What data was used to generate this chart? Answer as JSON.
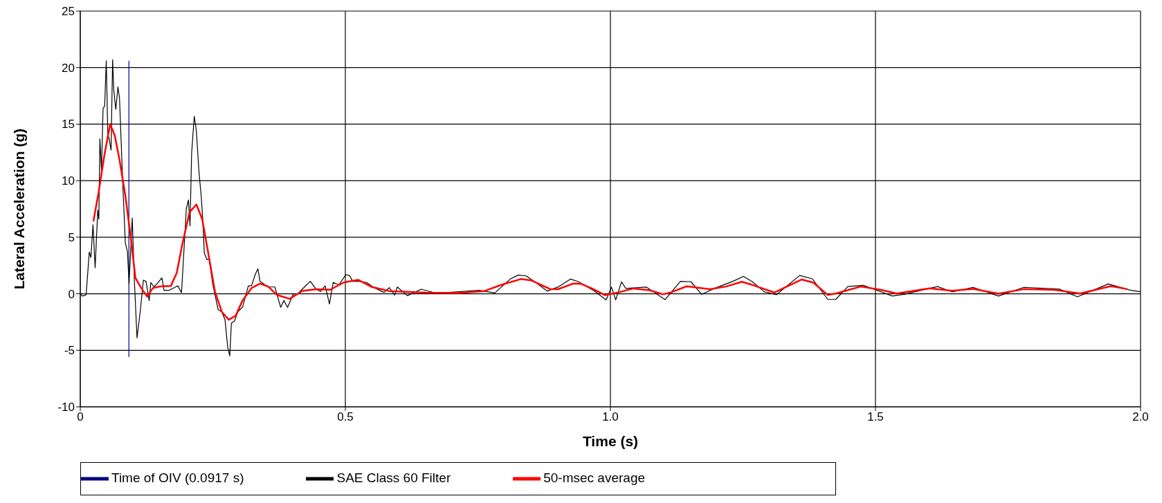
{
  "chart_data": {
    "type": "line",
    "xlabel": "Time (s)",
    "ylabel": "Lateral Acceleration (g)",
    "xlim": [
      0,
      2
    ],
    "xticks": [
      0,
      0.5,
      {
        "value": 1,
        "label": "1.0"
      },
      1.5,
      {
        "value": 2,
        "label": "2.0"
      }
    ],
    "ylim": [
      -10,
      25
    ],
    "yticks": [
      -10,
      -5,
      0,
      5,
      10,
      15,
      20,
      25
    ],
    "grid": true,
    "legend": "bottom",
    "series": [
      {
        "name": "Time of OIV (0.0917 s)",
        "color": "#000080",
        "x": [
          0.0917,
          0.0917
        ],
        "values": [
          -5.6,
          20.6
        ]
      },
      {
        "name": "SAE Class 60 Filter",
        "color": "#000000",
        "x": [
          0,
          0.004,
          0.011,
          0.017,
          0.02,
          0.024,
          0.028,
          0.033,
          0.035,
          0.037,
          0.04,
          0.043,
          0.046,
          0.049,
          0.052,
          0.054,
          0.058,
          0.061,
          0.063,
          0.067,
          0.071,
          0.074,
          0.08,
          0.085,
          0.089,
          0.092,
          0.098,
          0.102,
          0.107,
          0.113,
          0.119,
          0.124,
          0.13,
          0.133,
          0.139,
          0.145,
          0.154,
          0.158,
          0.167,
          0.184,
          0.191,
          0.2,
          0.204,
          0.207,
          0.21,
          0.215,
          0.219,
          0.224,
          0.228,
          0.231,
          0.234,
          0.239,
          0.243,
          0.25,
          0.26,
          0.267,
          0.273,
          0.278,
          0.282,
          0.285,
          0.291,
          0.297,
          0.306,
          0.317,
          0.323,
          0.33,
          0.335,
          0.339,
          0.354,
          0.367,
          0.378,
          0.384,
          0.391,
          0.402,
          0.41,
          0.423,
          0.434,
          0.445,
          0.453,
          0.462,
          0.47,
          0.477,
          0.488,
          0.501,
          0.508,
          0.514,
          0.527,
          0.54,
          0.554,
          0.573,
          0.583,
          0.593,
          0.598,
          0.617,
          0.643,
          0.672,
          0.752,
          0.782,
          0.811,
          0.826,
          0.841,
          0.861,
          0.881,
          0.901,
          0.925,
          0.94,
          0.97,
          0.992,
          1.002,
          1.01,
          1.021,
          1.029,
          1.068,
          1.083,
          1.103,
          1.132,
          1.152,
          1.172,
          1.196,
          1.231,
          1.251,
          1.268,
          1.29,
          1.313,
          1.357,
          1.381,
          1.41,
          1.425,
          1.448,
          1.477,
          1.532,
          1.554,
          1.617,
          1.645,
          1.684,
          1.732,
          1.78,
          1.847,
          1.881,
          1.939,
          1.982,
          2.0
        ],
        "values": [
          0,
          -0.2,
          -0.1,
          3.7,
          3.2,
          6.1,
          2.3,
          7.4,
          6.6,
          13.7,
          10.9,
          16.4,
          16.6,
          20.6,
          14,
          13.8,
          12.7,
          20.7,
          18.1,
          16.3,
          18.3,
          17.3,
          9.9,
          4.5,
          3.7,
          0.9,
          6.7,
          1.2,
          -3.9,
          -1.6,
          1.2,
          1.1,
          -0.6,
          1,
          0.6,
          0.9,
          1.4,
          0.3,
          0.3,
          0.7,
          0.1,
          7.5,
          8.3,
          6,
          12.4,
          15.7,
          14.4,
          10.7,
          8.7,
          6.6,
          3.6,
          3,
          3.1,
          0.8,
          -1.4,
          -1.6,
          -2.3,
          -4.7,
          -5.5,
          -2.6,
          -2.4,
          -1.6,
          -1.2,
          0.7,
          0.7,
          1.7,
          2.2,
          1.1,
          0.6,
          0.6,
          -1.2,
          -0.6,
          -1.2,
          0,
          0,
          0.6,
          1.1,
          0.4,
          0.2,
          0.7,
          -0.9,
          1,
          0.8,
          1.7,
          1.6,
          1.1,
          1.1,
          1,
          0.54,
          0.12,
          0.54,
          -0.12,
          0.6,
          -0.17,
          0.4,
          0.05,
          0.3,
          0.07,
          1.3,
          1.65,
          1.58,
          0.94,
          0.24,
          0.59,
          1.3,
          1.06,
          0.24,
          -0.54,
          0.59,
          -0.54,
          1.06,
          0.47,
          0.59,
          0.12,
          -0.52,
          1.1,
          1.06,
          -0.05,
          0.47,
          1.1,
          1.53,
          1.06,
          0.18,
          -0.09,
          1.62,
          1.32,
          -0.5,
          -0.5,
          0.64,
          0.75,
          -0.2,
          -0.05,
          0.64,
          0.16,
          0.57,
          -0.2,
          0.57,
          0.41,
          -0.27,
          0.87,
          0.3,
          0.18
        ]
      },
      {
        "name": "50-msec average",
        "color": "#ff0000",
        "x": [
          0.0247,
          0.0347,
          0.0456,
          0.0564,
          0.065,
          0.0738,
          0.0846,
          0.0955,
          0.104,
          0.115,
          0.126,
          0.137,
          0.15,
          0.171,
          0.182,
          0.193,
          0.206,
          0.219,
          0.23,
          0.241,
          0.254,
          0.267,
          0.28,
          0.293,
          0.306,
          0.323,
          0.339,
          0.354,
          0.371,
          0.395,
          0.419,
          0.445,
          0.471,
          0.497,
          0.524,
          0.55,
          0.583,
          0.653,
          0.712,
          0.762,
          0.797,
          0.831,
          0.851,
          0.886,
          0.901,
          0.93,
          0.945,
          0.965,
          0.99,
          1.015,
          1.044,
          1.074,
          1.099,
          1.114,
          1.144,
          1.188,
          1.218,
          1.248,
          1.27,
          1.309,
          1.333,
          1.361,
          1.383,
          1.41,
          1.429,
          1.472,
          1.511,
          1.54,
          1.602,
          1.645,
          1.684,
          1.732,
          1.78,
          1.838,
          1.886,
          1.944,
          1.975
        ],
        "values": [
          6.4,
          9,
          12.3,
          15,
          14,
          11.9,
          8.8,
          4.9,
          1.4,
          0.5,
          -0.25,
          0.5,
          0.65,
          0.7,
          1.85,
          4.5,
          7.2,
          7.9,
          6.6,
          3.7,
          0.2,
          -1.6,
          -2.3,
          -1.95,
          -0.6,
          0.5,
          0.9,
          0.65,
          -0.1,
          -0.45,
          0.25,
          0.4,
          0.35,
          1,
          1.23,
          0.6,
          0.24,
          0.1,
          0.07,
          0.24,
          0.83,
          1.3,
          1.18,
          0.42,
          0.4,
          0.9,
          0.87,
          0.47,
          -0.12,
          0.12,
          0.47,
          0.31,
          -0.05,
          0.12,
          0.66,
          0.4,
          0.64,
          1.06,
          0.75,
          0.11,
          0.64,
          1.26,
          0.98,
          -0.11,
          0.07,
          0.64,
          0.34,
          0.02,
          0.48,
          0.27,
          0.43,
          0,
          0.41,
          0.34,
          0.02,
          0.68,
          0.41
        ]
      }
    ]
  }
}
